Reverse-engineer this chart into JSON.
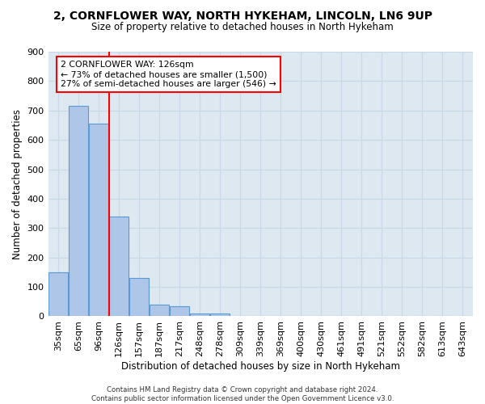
{
  "title1": "2, CORNFLOWER WAY, NORTH HYKEHAM, LINCOLN, LN6 9UP",
  "title2": "Size of property relative to detached houses in North Hykeham",
  "xlabel": "Distribution of detached houses by size in North Hykeham",
  "ylabel": "Number of detached properties",
  "footer1": "Contains HM Land Registry data © Crown copyright and database right 2024.",
  "footer2": "Contains public sector information licensed under the Open Government Licence v3.0.",
  "bins": [
    "35sqm",
    "65sqm",
    "96sqm",
    "126sqm",
    "157sqm",
    "187sqm",
    "217sqm",
    "248sqm",
    "278sqm",
    "309sqm",
    "339sqm",
    "369sqm",
    "400sqm",
    "430sqm",
    "461sqm",
    "491sqm",
    "521sqm",
    "552sqm",
    "582sqm",
    "613sqm",
    "643sqm"
  ],
  "values": [
    150,
    715,
    655,
    340,
    130,
    40,
    35,
    10,
    10,
    0,
    0,
    0,
    0,
    0,
    0,
    0,
    0,
    0,
    0,
    0,
    0
  ],
  "bar_color": "#aec6e8",
  "bar_edge_color": "#5b9bd5",
  "vline_x_index": 3,
  "vline_color": "red",
  "annotation_line1": "2 CORNFLOWER WAY: 126sqm",
  "annotation_line2": "← 73% of detached houses are smaller (1,500)",
  "annotation_line3": "27% of semi-detached houses are larger (546) →",
  "annotation_box_color": "white",
  "annotation_box_edge_color": "red",
  "ylim": [
    0,
    900
  ],
  "yticks": [
    0,
    100,
    200,
    300,
    400,
    500,
    600,
    700,
    800,
    900
  ],
  "grid_color": "#c8d8e8",
  "bg_color": "#dde8f0"
}
